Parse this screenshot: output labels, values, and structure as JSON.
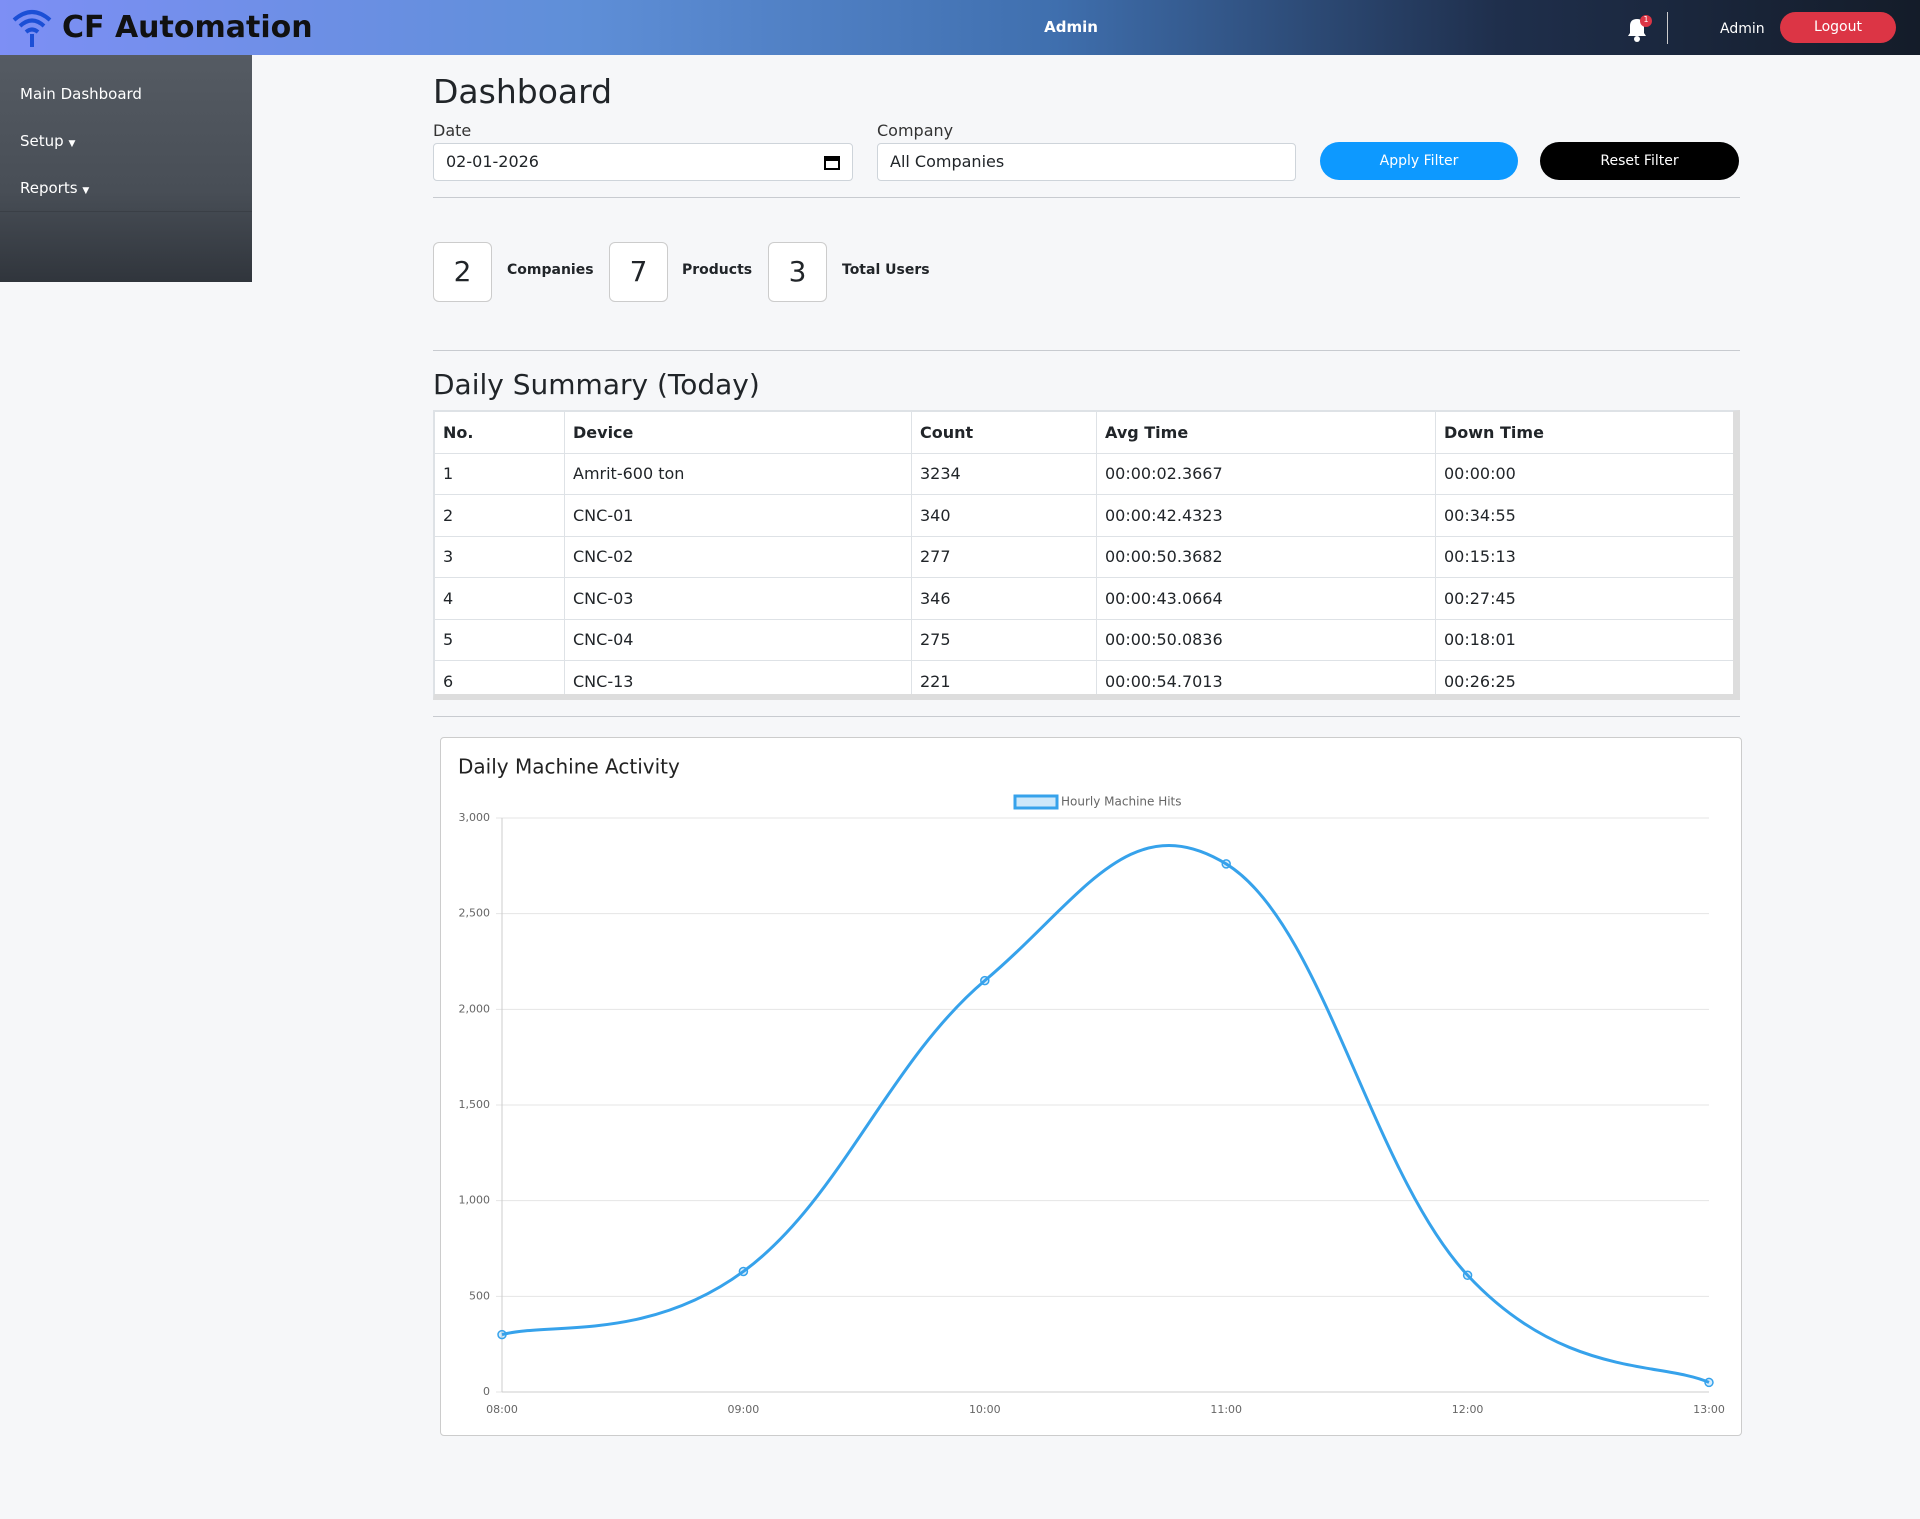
{
  "header": {
    "brand": "CF Automation",
    "center_user": "Admin",
    "notification_count": "1",
    "user": "Admin",
    "logout": "Logout"
  },
  "sidebar": {
    "items": [
      "Main Dashboard",
      "Setup",
      "Reports"
    ]
  },
  "page_title": "Dashboard",
  "filters": {
    "date_label": "Date",
    "date_value": "02-01-2026",
    "company_label": "Company",
    "company_value": "All Companies",
    "apply": "Apply Filter",
    "reset": "Reset Filter"
  },
  "stats": [
    {
      "value": "2",
      "label": "Companies"
    },
    {
      "value": "7",
      "label": "Products"
    },
    {
      "value": "3",
      "label": "Total Users"
    }
  ],
  "summary": {
    "title": "Daily Summary (Today)",
    "columns": [
      "No.",
      "Device",
      "Count",
      "Avg Time",
      "Down Time"
    ],
    "rows": [
      [
        "1",
        "Amrit-600 ton",
        "3234",
        "00:00:02.3667",
        "00:00:00"
      ],
      [
        "2",
        "CNC-01",
        "340",
        "00:00:42.4323",
        "00:34:55"
      ],
      [
        "3",
        "CNC-02",
        "277",
        "00:00:50.3682",
        "00:15:13"
      ],
      [
        "4",
        "CNC-03",
        "346",
        "00:00:43.0664",
        "00:27:45"
      ],
      [
        "5",
        "CNC-04",
        "275",
        "00:00:50.0836",
        "00:18:01"
      ],
      [
        "6",
        "CNC-13",
        "221",
        "00:00:54.7013",
        "00:26:25"
      ]
    ]
  },
  "chart_data": {
    "type": "line",
    "title": "Daily Machine Activity",
    "categories": [
      "08:00",
      "09:00",
      "10:00",
      "11:00",
      "12:00",
      "13:00"
    ],
    "series": [
      {
        "name": "Hourly Machine Hits",
        "color": "#36a2eb",
        "values": [
          300,
          630,
          2150,
          2760,
          610,
          50
        ]
      }
    ],
    "ylim": [
      0,
      3000
    ],
    "yticks": [
      0,
      500,
      {
        "value": 1000,
        "label": "1,000"
      },
      {
        "value": 1500,
        "label": "1,500"
      },
      {
        "value": 2000,
        "label": "2,000"
      },
      {
        "value": 2500,
        "label": "2,500"
      },
      {
        "value": 3000,
        "label": "3,000"
      }
    ],
    "grid": true,
    "legend": "top"
  }
}
